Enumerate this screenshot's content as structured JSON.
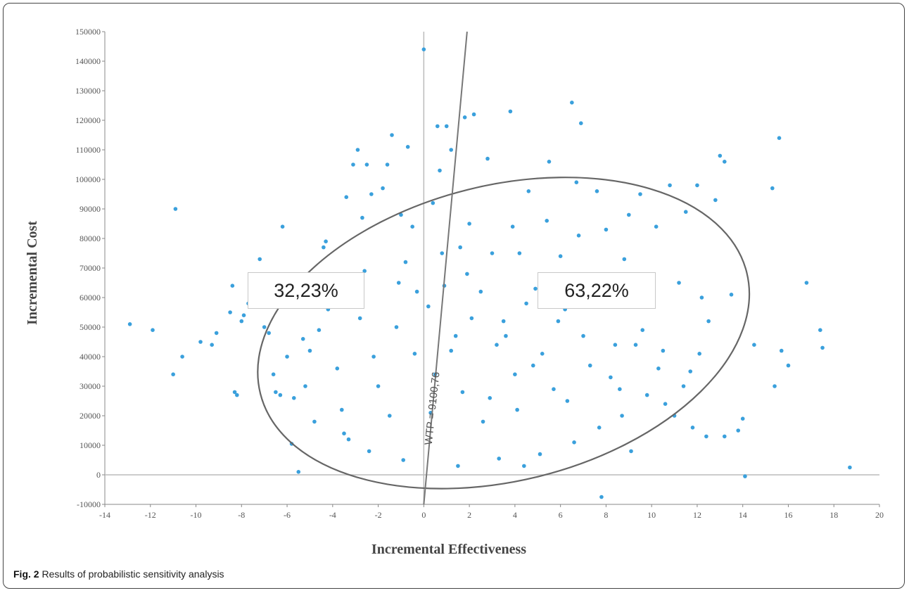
{
  "caption": {
    "label": "Fig. 2",
    "text": "Results of probabilistic sensitivity analysis"
  },
  "colors": {
    "points": "#3aa0dc",
    "ellipse": "#666666",
    "wtp_line": "#777777",
    "axis": "#bbbbbb"
  },
  "annotations": {
    "left_pct": "32,23%",
    "right_pct": "63,22%",
    "wtp_label": "WTP = 9100,76"
  },
  "chart_data": {
    "type": "scatter",
    "xlabel": "Incremental Effectiveness",
    "ylabel": "Incremental Cost",
    "xlim": [
      -14,
      20
    ],
    "ylim": [
      -10000,
      150000
    ],
    "x_ticks": [
      "-14",
      "-12",
      "-10",
      "-8",
      "-6",
      "-4",
      "-2",
      "0",
      "2",
      "4",
      "6",
      "8",
      "10",
      "12",
      "14",
      "16",
      "18",
      "20"
    ],
    "y_ticks": [
      "-10000",
      "0",
      "10000",
      "20000",
      "30000",
      "40000",
      "50000",
      "60000",
      "70000",
      "80000",
      "90000",
      "100000",
      "110000",
      "120000",
      "130000",
      "140000",
      "150000"
    ],
    "wtp_line": [
      [
        0,
        -10000
      ],
      [
        1.9,
        150000
      ]
    ],
    "confidence_ellipse": {
      "center": [
        3.5,
        48000
      ],
      "semi_major": 11,
      "semi_minor": 50000,
      "rotation_deg": 14
    },
    "points": [
      [
        -12.9,
        51000
      ],
      [
        -11.9,
        49000
      ],
      [
        -11,
        34000
      ],
      [
        -10.9,
        90000
      ],
      [
        -10.6,
        40000
      ],
      [
        -9.8,
        45000
      ],
      [
        -9.3,
        44000
      ],
      [
        -9.1,
        48000
      ],
      [
        -8.5,
        55000
      ],
      [
        -8.4,
        64000
      ],
      [
        -8.3,
        28000
      ],
      [
        -8.2,
        27000
      ],
      [
        -8,
        52000
      ],
      [
        -7.9,
        54000
      ],
      [
        -7.7,
        58000
      ],
      [
        -7.2,
        73000
      ],
      [
        -7,
        50000
      ],
      [
        -6.8,
        48000
      ],
      [
        -6.5,
        28000
      ],
      [
        -6.3,
        27000
      ],
      [
        -6.2,
        84000
      ],
      [
        -6,
        40000
      ],
      [
        -5.8,
        10500
      ],
      [
        -5.5,
        1000
      ],
      [
        -5.7,
        26000
      ],
      [
        -5.2,
        30000
      ],
      [
        -5,
        42000
      ],
      [
        -4.8,
        18000
      ],
      [
        -4.6,
        49000
      ],
      [
        -4.4,
        77000
      ],
      [
        -4.3,
        79000
      ],
      [
        -4,
        66000
      ],
      [
        -3.8,
        36000
      ],
      [
        -3.6,
        22000
      ],
      [
        -3.4,
        94000
      ],
      [
        -3.3,
        12000
      ],
      [
        -3.1,
        105000
      ],
      [
        -2.9,
        110000
      ],
      [
        -2.7,
        87000
      ],
      [
        -2.6,
        69000
      ],
      [
        -2.5,
        105000
      ],
      [
        -2.3,
        95000
      ],
      [
        -2.2,
        40000
      ],
      [
        -2,
        30000
      ],
      [
        -1.8,
        97000
      ],
      [
        -1.6,
        105000
      ],
      [
        -1.4,
        115000
      ],
      [
        -1.2,
        50000
      ],
      [
        -1,
        88000
      ],
      [
        -0.8,
        72000
      ],
      [
        -0.7,
        111000
      ],
      [
        -0.5,
        84000
      ],
      [
        -0.3,
        62000
      ],
      [
        0,
        144000
      ],
      [
        0.2,
        57000
      ],
      [
        0.4,
        92000
      ],
      [
        0.6,
        118000
      ],
      [
        0.7,
        103000
      ],
      [
        0.9,
        64000
      ],
      [
        1,
        118000
      ],
      [
        1.2,
        110000
      ],
      [
        1.4,
        47000
      ],
      [
        1.6,
        77000
      ],
      [
        1.8,
        121000
      ],
      [
        2,
        85000
      ],
      [
        2.2,
        122000
      ],
      [
        2.5,
        62000
      ],
      [
        2.8,
        107000
      ],
      [
        3,
        75000
      ],
      [
        3.2,
        44000
      ],
      [
        3.5,
        52000
      ],
      [
        3.8,
        123000
      ],
      [
        4,
        34000
      ],
      [
        4.2,
        75000
      ],
      [
        4.5,
        58000
      ],
      [
        4.6,
        96000
      ],
      [
        4.9,
        63000
      ],
      [
        5.2,
        41000
      ],
      [
        5.5,
        106000
      ],
      [
        5.7,
        29000
      ],
      [
        6,
        74000
      ],
      [
        6.2,
        56000
      ],
      [
        6.5,
        126000
      ],
      [
        6.7,
        99000
      ],
      [
        6.9,
        119000
      ],
      [
        7,
        47000
      ],
      [
        7.3,
        37000
      ],
      [
        7.6,
        96000
      ],
      [
        7.8,
        -7500
      ],
      [
        8,
        83000
      ],
      [
        8.2,
        33000
      ],
      [
        8.5,
        64000
      ],
      [
        8.7,
        20000
      ],
      [
        9,
        88000
      ],
      [
        9.3,
        44000
      ],
      [
        9.5,
        95000
      ],
      [
        9.8,
        27000
      ],
      [
        10,
        57000
      ],
      [
        10.2,
        84000
      ],
      [
        10.5,
        42000
      ],
      [
        10.8,
        98000
      ],
      [
        11,
        20000
      ],
      [
        11.2,
        65000
      ],
      [
        11.5,
        89000
      ],
      [
        11.7,
        35000
      ],
      [
        12,
        98000
      ],
      [
        12.2,
        60000
      ],
      [
        12.5,
        52000
      ],
      [
        12.8,
        93000
      ],
      [
        13,
        108000
      ],
      [
        13.2,
        106000
      ],
      [
        13.5,
        61000
      ],
      [
        13.8,
        15000
      ],
      [
        14,
        19000
      ],
      [
        14.1,
        -500
      ],
      [
        14.5,
        44000
      ],
      [
        15.3,
        97000
      ],
      [
        15.4,
        30000
      ],
      [
        15.6,
        114000
      ],
      [
        15.7,
        42000
      ],
      [
        16,
        37000
      ],
      [
        16.8,
        65000
      ],
      [
        17.4,
        49000
      ],
      [
        17.5,
        43000
      ],
      [
        18.7,
        2500
      ],
      [
        12.4,
        13000
      ],
      [
        13.2,
        13000
      ],
      [
        11.8,
        16000
      ],
      [
        -0.9,
        5000
      ],
      [
        0.3,
        21000
      ],
      [
        1.5,
        3000
      ],
      [
        2.9,
        26000
      ],
      [
        3.3,
        5500
      ],
      [
        4.4,
        3000
      ],
      [
        5.1,
        7000
      ],
      [
        6.6,
        11000
      ],
      [
        9.1,
        8000
      ],
      [
        -3.5,
        14000
      ],
      [
        -2.4,
        8000
      ],
      [
        -1.5,
        20000
      ],
      [
        0.5,
        34000
      ],
      [
        1.2,
        42000
      ],
      [
        2.1,
        53000
      ],
      [
        3.6,
        47000
      ],
      [
        4.8,
        37000
      ],
      [
        5.9,
        52000
      ],
      [
        7.2,
        62000
      ],
      [
        8.4,
        44000
      ],
      [
        9.6,
        49000
      ],
      [
        10.6,
        24000
      ],
      [
        11.4,
        30000
      ],
      [
        -4.2,
        56000
      ],
      [
        -5.3,
        46000
      ],
      [
        -6.6,
        34000
      ],
      [
        -1.1,
        65000
      ],
      [
        0.8,
        75000
      ],
      [
        1.9,
        68000
      ],
      [
        3.9,
        84000
      ],
      [
        5.4,
        86000
      ],
      [
        6.8,
        81000
      ],
      [
        8.8,
        73000
      ],
      [
        9.9,
        66000
      ],
      [
        -2.8,
        53000
      ],
      [
        -0.4,
        41000
      ],
      [
        1.7,
        28000
      ],
      [
        2.6,
        18000
      ],
      [
        4.1,
        22000
      ],
      [
        6.3,
        25000
      ],
      [
        7.7,
        16000
      ],
      [
        8.6,
        29000
      ],
      [
        10.3,
        36000
      ],
      [
        12.1,
        41000
      ]
    ]
  }
}
